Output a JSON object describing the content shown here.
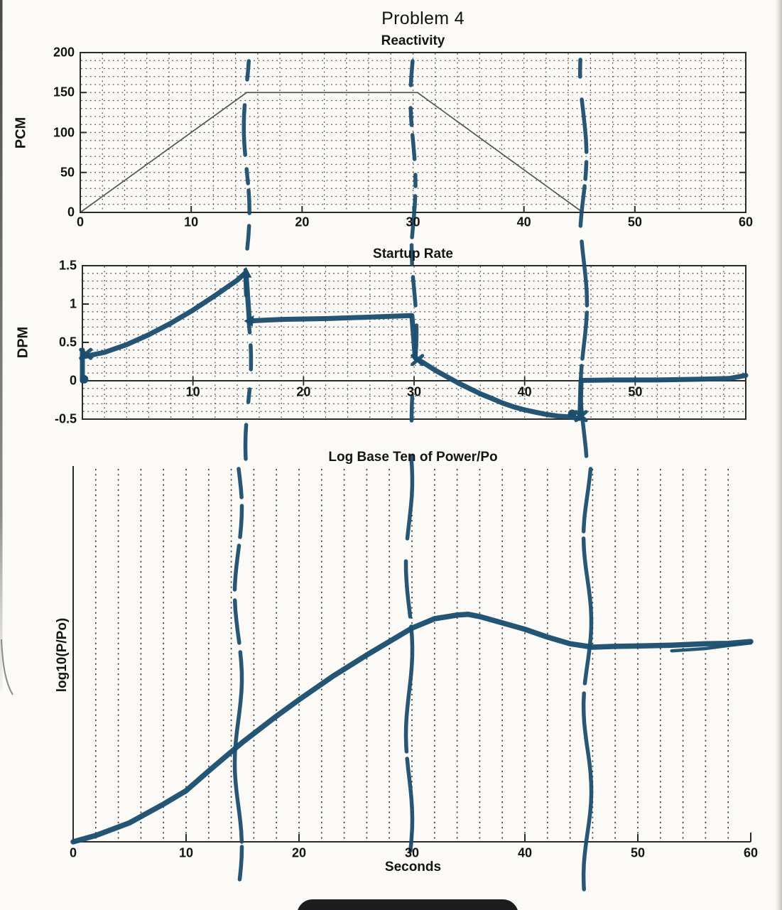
{
  "page": {
    "title": "Problem 4"
  },
  "ink_color": "#1b4e6e",
  "chart_data": [
    {
      "type": "line",
      "title": "Reactivity",
      "ylabel": "PCM",
      "xlabel": "",
      "xlim": [
        0,
        60
      ],
      "ylim": [
        0,
        200
      ],
      "xticks": [
        0,
        10,
        20,
        30,
        40,
        50,
        60
      ],
      "yticks": [
        0,
        50,
        100,
        150,
        200
      ],
      "grid": "dotted horizontal every 10 PCM, dotted vertical every 2 s",
      "series": [
        {
          "name": "reactivity-ramp",
          "style": "printed-thin-line",
          "x": [
            0,
            15,
            30.4,
            45.3,
            60
          ],
          "y": [
            0,
            150,
            150,
            0,
            0
          ]
        }
      ],
      "annotations": {
        "hand_drawn_dashed_vertical_lines_s": [
          15,
          30,
          45.3
        ]
      }
    },
    {
      "type": "line",
      "title": "Startup Rate",
      "ylabel": "DPM",
      "xlabel": "",
      "xlim": [
        0,
        60
      ],
      "ylim": [
        -0.5,
        1.5
      ],
      "xticks": [
        10,
        20,
        30,
        40,
        50
      ],
      "yticks": [
        -0.5,
        0,
        0.5,
        1,
        1.5
      ],
      "grid": "dotted horizontal every 0.1 DPM, dotted vertical every 2 s, solid line at 0",
      "series": [
        {
          "name": "startup-rate-hand-drawn",
          "style": "hand-drawn-marker",
          "segments": [
            {
              "name": "initial-spike",
              "x": [
                0,
                0
              ],
              "y": [
                0,
                0.4
              ]
            },
            {
              "name": "rise-0-15",
              "x": [
                0,
                2,
                4,
                6,
                8,
                10,
                12,
                13,
                14,
                14.7
              ],
              "y": [
                0.31,
                0.37,
                0.47,
                0.6,
                0.75,
                0.92,
                1.11,
                1.21,
                1.31,
                1.4
              ]
            },
            {
              "name": "drop-at-15",
              "x": [
                14.8,
                15.1
              ],
              "y": [
                1.4,
                0.78
              ]
            },
            {
              "name": "flat-15-30",
              "x": [
                15.1,
                18,
                22,
                26,
                29.7
              ],
              "y": [
                0.78,
                0.8,
                0.81,
                0.83,
                0.85
              ]
            },
            {
              "name": "drop-at-30",
              "x": [
                29.8,
                30.1
              ],
              "y": [
                0.85,
                0.3
              ]
            },
            {
              "name": "decay-30-45",
              "x": [
                30.1,
                31,
                32,
                33,
                34,
                35,
                36,
                37,
                38,
                39,
                40,
                41,
                42,
                43,
                44,
                44.9
              ],
              "y": [
                0.3,
                0.22,
                0.13,
                0.05,
                -0.03,
                -0.1,
                -0.17,
                -0.23,
                -0.29,
                -0.34,
                -0.38,
                -0.41,
                -0.44,
                -0.46,
                -0.47,
                -0.49
              ]
            },
            {
              "name": "jump-at-45",
              "x": [
                45.0,
                45.1
              ],
              "y": [
                -0.49,
                0.0
              ]
            },
            {
              "name": "flat-45-60",
              "x": [
                45.1,
                48,
                52,
                56,
                58.5,
                60
              ],
              "y": [
                0.005,
                0.01,
                0.01,
                0.02,
                0.03,
                0.07
              ]
            }
          ],
          "marks": [
            {
              "type": "dot",
              "x": 0.15,
              "y": 0.02
            },
            {
              "type": "cross",
              "x": 0.3,
              "y": 0.35
            },
            {
              "type": "triangle",
              "x": 14.8,
              "y": 1.4
            },
            {
              "type": "arrowhead",
              "x": 15.2,
              "y": 0.78
            },
            {
              "type": "cross",
              "x": 30.3,
              "y": 0.27
            },
            {
              "type": "dot",
              "x": 44.3,
              "y": -0.43
            },
            {
              "type": "cross",
              "x": 45.1,
              "y": -0.46
            }
          ]
        }
      ],
      "annotations": {
        "hand_drawn_dashed_vertical_lines_s": [
          15,
          30,
          45.4
        ]
      }
    },
    {
      "type": "line",
      "title": "Log Base Ten of Power/Po",
      "ylabel": "log10(P/Po)",
      "xlabel": "Seconds",
      "xlim": [
        0,
        60
      ],
      "xticks": [
        0,
        10,
        20,
        30,
        40,
        50,
        60
      ],
      "yticks": [],
      "grid": "dotted vertical every 2 s only; y axis unlabeled",
      "note": "y values normalized 0-1 as fraction of axis height (no printed y ticks)",
      "series": [
        {
          "name": "log-power-hand-drawn",
          "style": "hand-drawn-marker",
          "x": [
            0,
            2,
            5,
            8,
            10,
            12,
            15,
            18,
            20,
            23,
            26,
            28,
            30,
            32,
            34,
            35,
            36,
            38,
            40,
            42,
            44,
            46,
            48,
            50,
            53,
            56,
            58,
            60
          ],
          "y_norm": [
            0.0,
            0.017,
            0.051,
            0.101,
            0.137,
            0.19,
            0.267,
            0.337,
            0.381,
            0.444,
            0.501,
            0.537,
            0.573,
            0.598,
            0.608,
            0.61,
            0.604,
            0.587,
            0.57,
            0.549,
            0.531,
            0.522,
            0.524,
            0.525,
            0.527,
            0.531,
            0.532,
            0.537
          ]
        },
        {
          "name": "log-power-retrace-end",
          "style": "hand-drawn-marker-thin",
          "x": [
            53,
            56,
            58,
            60
          ],
          "y_norm": [
            0.512,
            0.518,
            0.526,
            0.533
          ]
        }
      ],
      "annotations": {
        "hand_drawn_dashed_vertical_lines_s": [
          15,
          30,
          46
        ]
      }
    }
  ]
}
